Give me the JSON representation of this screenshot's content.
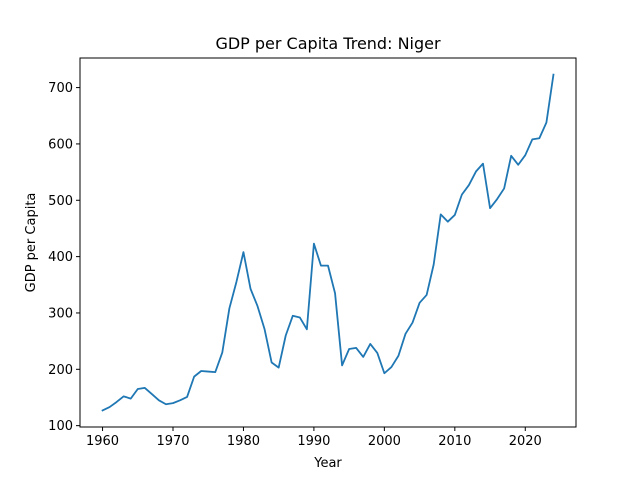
{
  "chart_data": {
    "type": "line",
    "title": "GDP per Capita Trend: Niger",
    "xlabel": "Year",
    "ylabel": "GDP per Capita",
    "xlim": [
      1956.8,
      2027.2
    ],
    "ylim": [
      97.6,
      752.5
    ],
    "xticks": [
      1960,
      1970,
      1980,
      1990,
      2000,
      2010,
      2020
    ],
    "yticks": [
      100,
      200,
      300,
      400,
      500,
      600,
      700
    ],
    "grid": false,
    "legend": "none",
    "series": [
      {
        "color": "#1f77b4",
        "x": [
          1960,
          1961,
          1962,
          1963,
          1964,
          1965,
          1966,
          1967,
          1968,
          1969,
          1970,
          1971,
          1972,
          1973,
          1974,
          1975,
          1976,
          1977,
          1978,
          1979,
          1980,
          1981,
          1982,
          1983,
          1984,
          1985,
          1986,
          1987,
          1988,
          1989,
          1990,
          1991,
          1992,
          1993,
          1994,
          1995,
          1996,
          1997,
          1998,
          1999,
          2000,
          2001,
          2002,
          2003,
          2004,
          2005,
          2006,
          2007,
          2008,
          2009,
          2010,
          2011,
          2012,
          2013,
          2014,
          2015,
          2016,
          2017,
          2018,
          2019,
          2020,
          2021,
          2022,
          2023,
          2024
        ],
        "values": [
          127,
          133,
          142,
          152,
          148,
          165,
          167,
          156,
          145,
          138,
          140,
          145,
          151,
          187,
          197,
          196,
          195,
          230,
          308,
          355,
          408,
          343,
          312,
          271,
          212,
          203,
          260,
          295,
          292,
          271,
          423,
          384,
          384,
          335,
          207,
          236,
          238,
          222,
          245,
          229,
          193,
          204,
          224,
          263,
          283,
          318,
          332,
          386,
          475,
          462,
          474,
          510,
          527,
          551,
          565,
          486,
          502,
          521,
          579,
          563,
          580,
          608,
          610,
          638,
          723
        ]
      }
    ]
  }
}
